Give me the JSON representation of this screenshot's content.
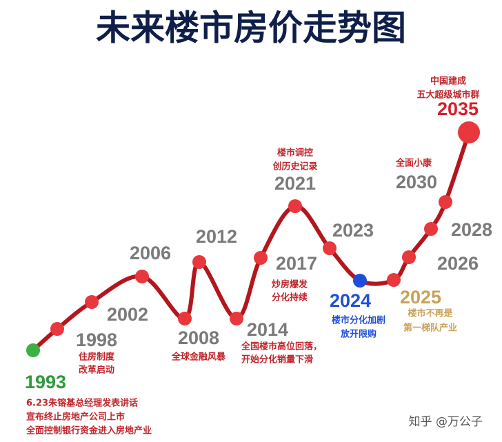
{
  "title": "未来楼市房价走势图",
  "nodes": [
    {
      "year": "1993",
      "notes": [
        "6.23朱镕基总经理发表讲话",
        "宣布终止房地产公司上市",
        "全面控制银行资金进入房地产业"
      ]
    },
    {
      "year": "1998",
      "notes": [
        "住房制度",
        "改革启动"
      ]
    },
    {
      "year": "2002",
      "notes": []
    },
    {
      "year": "2006",
      "notes": []
    },
    {
      "year": "2008",
      "notes": [
        "全球金融风暴"
      ]
    },
    {
      "year": "2012",
      "notes": []
    },
    {
      "year": "2014",
      "notes": [
        "全国楼市高位回落，",
        "开始分化销量下滑"
      ]
    },
    {
      "year": "2017",
      "notes": [
        "炒房爆发",
        "分化持续"
      ]
    },
    {
      "year": "2021",
      "notes": [
        "楼市调控",
        "创历史记录"
      ]
    },
    {
      "year": "2023",
      "notes": []
    },
    {
      "year": "2024",
      "notes": [
        "楼市分化加剧",
        "放开限购"
      ]
    },
    {
      "year": "2025",
      "notes": [
        "楼市不再是",
        "第一梯队产业"
      ]
    },
    {
      "year": "2026",
      "notes": []
    },
    {
      "year": "2028",
      "notes": []
    },
    {
      "year": "2030",
      "notes": [
        "全面小康"
      ]
    },
    {
      "year": "2035",
      "notes": [
        "中国建成",
        "五大超级城市群"
      ]
    }
  ],
  "watermark": "知乎 @万公子"
}
